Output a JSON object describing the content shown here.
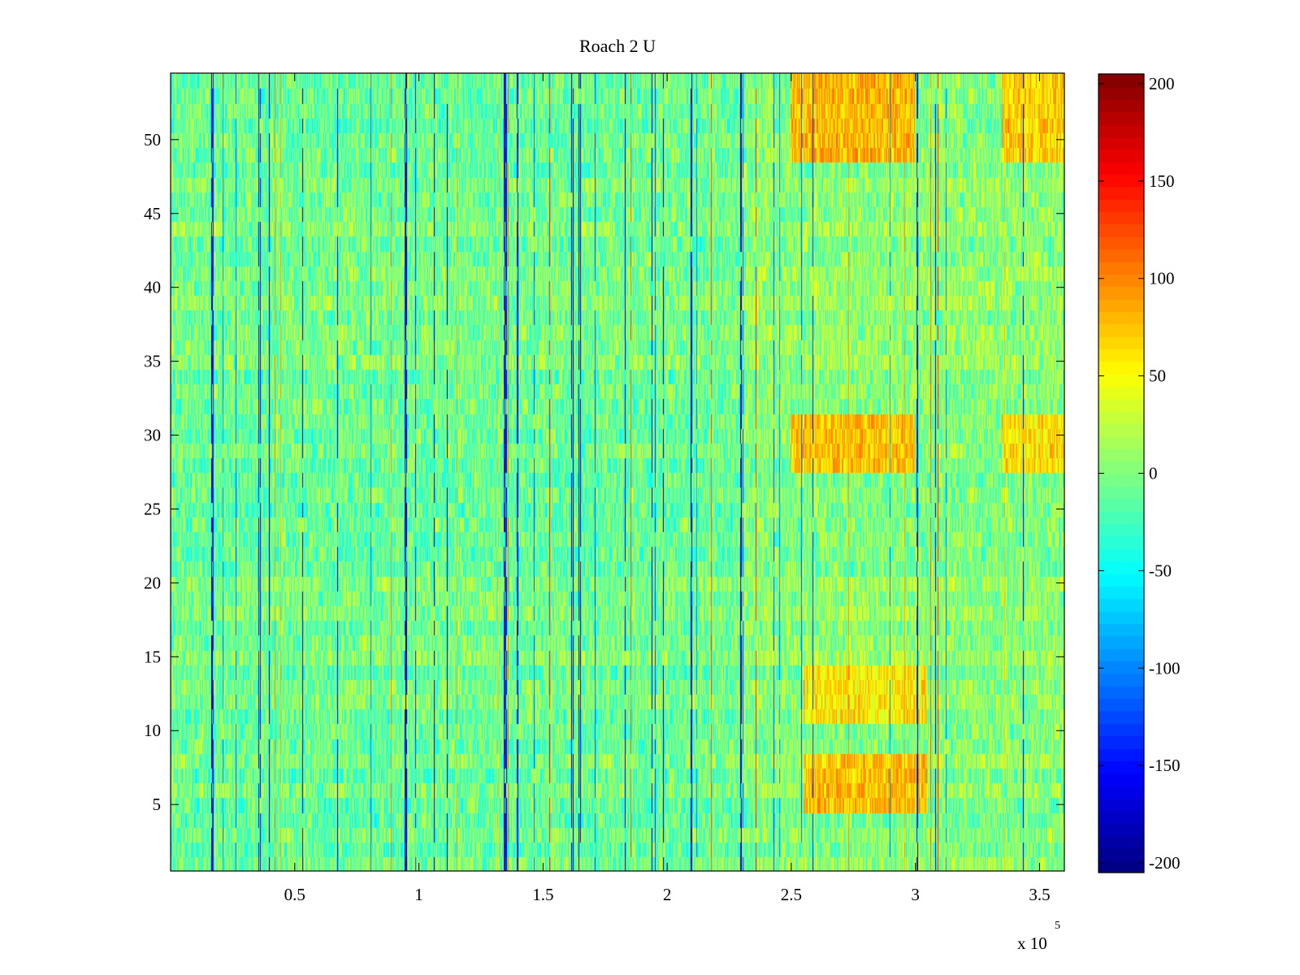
{
  "chart_data": {
    "type": "heatmap",
    "title": "Roach 2 U",
    "xlabel": "",
    "ylabel": "",
    "x_exponent": {
      "base": "x 10",
      "power": "5"
    },
    "xlim": [
      0,
      3.6
    ],
    "ylim": [
      0.5,
      54.5
    ],
    "rows": 54,
    "columns": 1440,
    "x_ticks": [
      {
        "value": 0.5,
        "label": "0.5"
      },
      {
        "value": 1.0,
        "label": "1"
      },
      {
        "value": 1.5,
        "label": "1.5"
      },
      {
        "value": 2.0,
        "label": "2"
      },
      {
        "value": 2.5,
        "label": "2.5"
      },
      {
        "value": 3.0,
        "label": "3"
      },
      {
        "value": 3.5,
        "label": "3.5"
      }
    ],
    "y_ticks": [
      {
        "value": 5,
        "label": "5"
      },
      {
        "value": 10,
        "label": "10"
      },
      {
        "value": 15,
        "label": "15"
      },
      {
        "value": 20,
        "label": "20"
      },
      {
        "value": 25,
        "label": "25"
      },
      {
        "value": 30,
        "label": "30"
      },
      {
        "value": 35,
        "label": "35"
      },
      {
        "value": 40,
        "label": "40"
      },
      {
        "value": 45,
        "label": "45"
      },
      {
        "value": 50,
        "label": "50"
      }
    ],
    "colorbar": {
      "colormap": "jet",
      "clim": [
        -205,
        205
      ],
      "ticks": [
        {
          "value": 200,
          "label": "200"
        },
        {
          "value": 150,
          "label": "150"
        },
        {
          "value": 100,
          "label": "100"
        },
        {
          "value": 50,
          "label": "50"
        },
        {
          "value": 0,
          "label": "0"
        },
        {
          "value": -50,
          "label": "-50"
        },
        {
          "value": -100,
          "label": "-100"
        },
        {
          "value": -150,
          "label": "-150"
        },
        {
          "value": -200,
          "label": "-200"
        }
      ]
    },
    "value_description": {
      "typical_range": [
        -50,
        40
      ],
      "warm_regions": [
        {
          "x_range": [
            2.5,
            3.0
          ],
          "y_range": [
            49,
            54
          ],
          "approx_value": 80
        },
        {
          "x_range": [
            2.5,
            3.0
          ],
          "y_range": [
            28,
            31
          ],
          "approx_value": 75
        },
        {
          "x_range": [
            2.55,
            3.05
          ],
          "y_range": [
            11,
            14
          ],
          "approx_value": 60
        },
        {
          "x_range": [
            2.55,
            3.05
          ],
          "y_range": [
            5,
            8
          ],
          "approx_value": 75
        },
        {
          "x_range": [
            3.35,
            3.6
          ],
          "y_range": [
            49,
            54
          ],
          "approx_value": 70
        },
        {
          "x_range": [
            3.35,
            3.6
          ],
          "y_range": [
            28,
            31
          ],
          "approx_value": 60
        }
      ],
      "cool_column_positions": [
        0.17,
        0.36,
        0.4,
        0.67,
        0.95,
        1.35,
        1.4,
        1.62,
        1.65,
        2.1,
        2.3
      ]
    }
  }
}
